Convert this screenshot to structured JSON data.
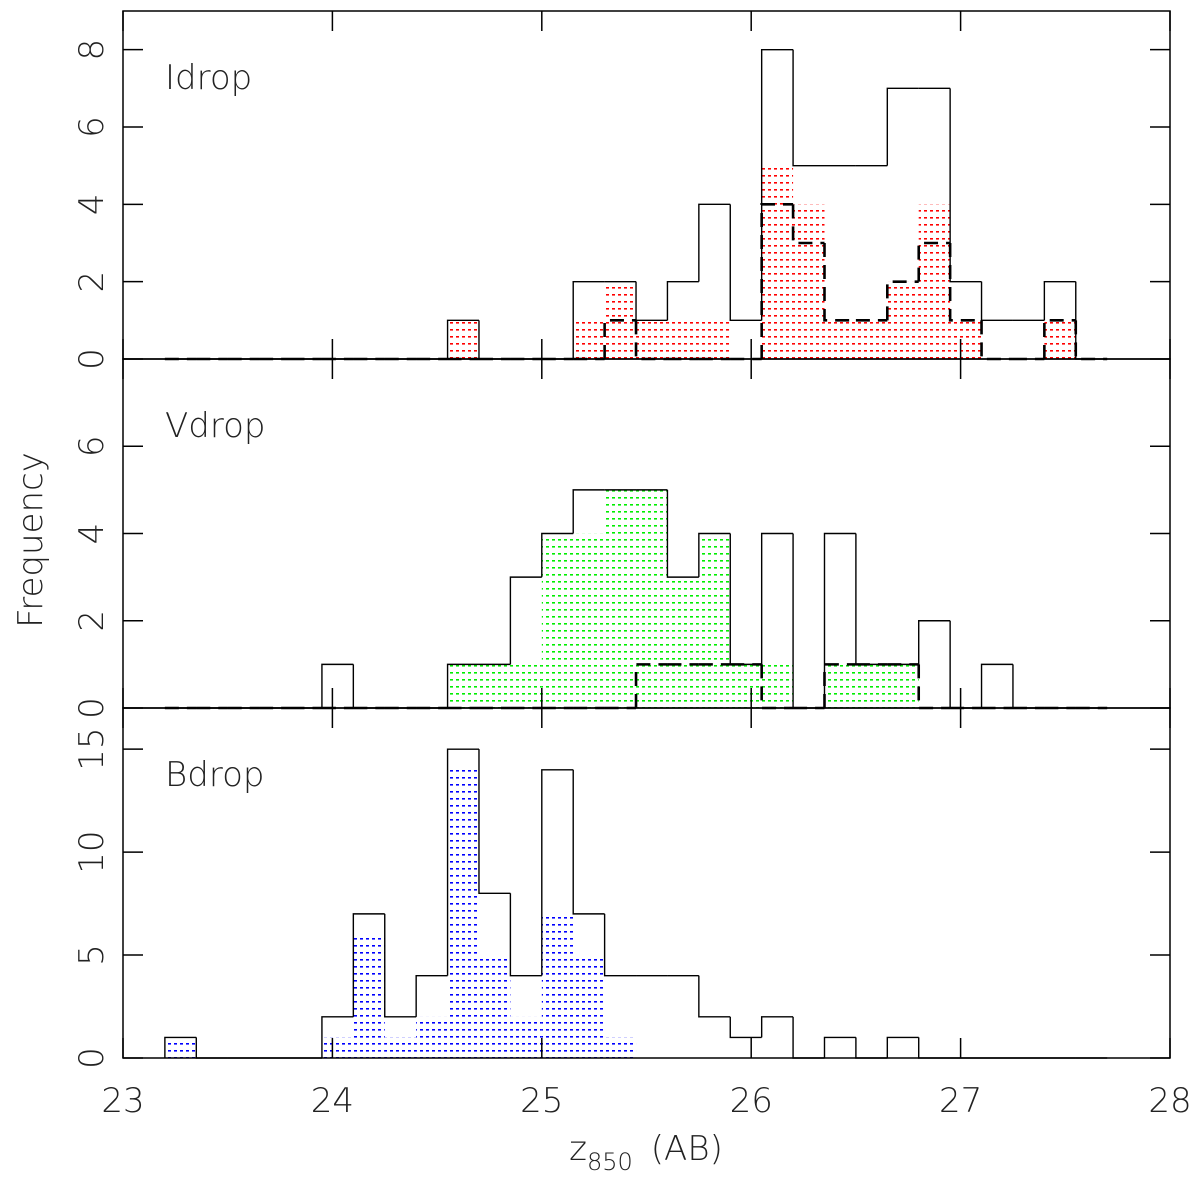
{
  "chart_data": [
    {
      "type": "histogram",
      "title": "Idrop",
      "bins": [
        23.2,
        23.35,
        23.5,
        23.65,
        23.8,
        23.95,
        24.1,
        24.25,
        24.4,
        24.55,
        24.7,
        24.85,
        25.0,
        25.15,
        25.3,
        25.45,
        25.6,
        25.75,
        25.9,
        26.05,
        26.2,
        26.35,
        26.5,
        26.65,
        26.8,
        26.95,
        27.1,
        27.25,
        27.4,
        27.55,
        27.7
      ],
      "series": [
        {
          "color": "#ff0000",
          "style": "dotted-fill",
          "values": [
            0,
            0,
            0,
            0,
            0,
            0,
            0,
            0,
            0,
            1,
            0,
            0,
            0,
            1,
            2,
            1,
            1,
            1,
            0,
            5,
            4,
            1,
            1,
            2,
            4,
            1,
            0,
            0,
            1,
            0
          ]
        },
        {
          "color": "#000000",
          "style": "solid",
          "values": [
            0,
            0,
            0,
            0,
            0,
            0,
            0,
            0,
            0,
            1,
            0,
            0,
            0,
            2,
            2,
            1,
            2,
            4,
            1,
            8,
            5,
            5,
            5,
            7,
            7,
            2,
            1,
            1,
            2,
            0
          ]
        },
        {
          "color": "#000000",
          "style": "dashed",
          "values": [
            0,
            0,
            0,
            0,
            0,
            0,
            0,
            0,
            0,
            0,
            0,
            0,
            0,
            0,
            1,
            0,
            0,
            0,
            0,
            4,
            3,
            1,
            1,
            2,
            3,
            1,
            0,
            0,
            1,
            0
          ]
        }
      ],
      "xlim": [
        23,
        28
      ],
      "xticks": [
        23,
        24,
        25,
        26,
        27,
        28
      ],
      "ylim": [
        0,
        9
      ],
      "yticks": [
        0,
        2,
        4,
        6,
        8
      ]
    },
    {
      "type": "histogram",
      "title": "Vdrop",
      "ylabel": "Frequency",
      "bins": [
        23.2,
        23.35,
        23.5,
        23.65,
        23.8,
        23.95,
        24.1,
        24.25,
        24.4,
        24.55,
        24.7,
        24.85,
        25.0,
        25.15,
        25.3,
        25.45,
        25.6,
        25.75,
        25.9,
        26.05,
        26.2,
        26.35,
        26.5,
        26.65,
        26.8,
        26.95,
        27.1,
        27.25,
        27.4,
        27.55,
        27.7
      ],
      "series": [
        {
          "color": "#00ee00",
          "style": "dotted-fill",
          "values": [
            0,
            0,
            0,
            0,
            0,
            0,
            0,
            0,
            0,
            1,
            1,
            1,
            4,
            4,
            5,
            5,
            3,
            4,
            1,
            1,
            0,
            1,
            1,
            1,
            0,
            0,
            0,
            0,
            0,
            0
          ]
        },
        {
          "color": "#000000",
          "style": "solid",
          "values": [
            0,
            0,
            0,
            0,
            0,
            1,
            0,
            0,
            0,
            1,
            1,
            3,
            4,
            5,
            5,
            5,
            3,
            4,
            1,
            4,
            0,
            4,
            1,
            1,
            2,
            0,
            1,
            0,
            0,
            0
          ]
        },
        {
          "color": "#000000",
          "style": "dashed",
          "values": [
            0,
            0,
            0,
            0,
            0,
            0,
            0,
            0,
            0,
            0,
            0,
            0,
            0,
            0,
            0,
            1,
            1,
            1,
            1,
            0,
            0,
            1,
            1,
            1,
            0,
            0,
            0,
            0,
            0,
            0
          ]
        }
      ],
      "xlim": [
        23,
        28
      ],
      "xticks": [
        23,
        24,
        25,
        26,
        27,
        28
      ],
      "ylim": [
        0,
        8
      ],
      "yticks": [
        0,
        2,
        4,
        6
      ]
    },
    {
      "type": "histogram",
      "title": "Bdrop",
      "xlabel": {
        "text": "z",
        "subscript": "850",
        "suffix": "(AB)"
      },
      "bins": [
        23.2,
        23.35,
        23.5,
        23.65,
        23.8,
        23.95,
        24.1,
        24.25,
        24.4,
        24.55,
        24.7,
        24.85,
        25.0,
        25.15,
        25.3,
        25.45,
        25.6,
        25.75,
        25.9,
        26.05,
        26.2,
        26.35,
        26.5,
        26.65,
        26.8,
        26.95,
        27.1,
        27.25,
        27.4,
        27.55,
        27.7
      ],
      "series": [
        {
          "color": "#0000ff",
          "style": "dotted-fill",
          "values": [
            1,
            0,
            0,
            0,
            0,
            1,
            6,
            1,
            2,
            14,
            5,
            2,
            7,
            5,
            1,
            0,
            0,
            0,
            0,
            0,
            0,
            0,
            0,
            0,
            0,
            0,
            0,
            0,
            0,
            0
          ]
        },
        {
          "color": "#000000",
          "style": "solid",
          "values": [
            1,
            0,
            0,
            0,
            0,
            2,
            7,
            2,
            4,
            15,
            8,
            4,
            14,
            7,
            4,
            4,
            4,
            2,
            1,
            2,
            0,
            1,
            0,
            1,
            0,
            0,
            0,
            0,
            0,
            0
          ]
        }
      ],
      "xlim": [
        23,
        28
      ],
      "xticks": [
        23,
        24,
        25,
        26,
        27,
        28
      ],
      "ylim": [
        0,
        17
      ],
      "yticks": [
        0,
        5,
        10,
        15
      ]
    }
  ]
}
